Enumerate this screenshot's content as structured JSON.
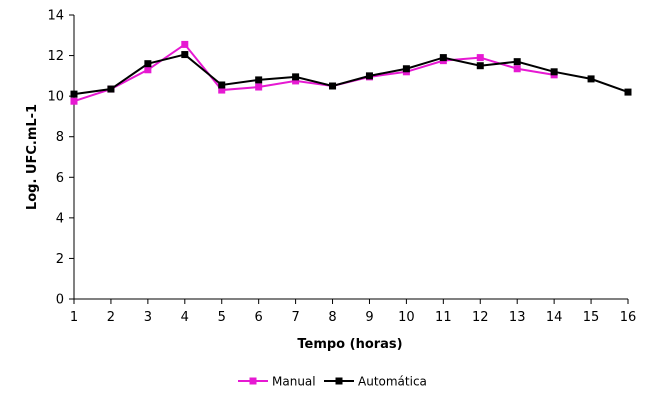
{
  "chart_data": {
    "type": "line",
    "xlabel": "Tempo (horas)",
    "ylabel": "Log. UFC.mL-1",
    "x": [
      1,
      2,
      3,
      4,
      5,
      6,
      7,
      8,
      9,
      10,
      11,
      12,
      13,
      14,
      15,
      16
    ],
    "xlim": [
      1,
      16
    ],
    "ylim": [
      0,
      14
    ],
    "yticks": [
      0,
      2,
      4,
      6,
      8,
      10,
      12,
      14
    ],
    "grid": false,
    "legend_position": "bottom",
    "series": [
      {
        "name": "Manual",
        "color": "#e619d2",
        "marker": "square",
        "values": [
          9.75,
          10.35,
          11.3,
          12.55,
          10.3,
          10.45,
          10.75,
          10.5,
          10.95,
          11.2,
          11.75,
          11.9,
          11.35,
          11.05,
          null,
          null
        ]
      },
      {
        "name": "Automática",
        "color": "#000000",
        "marker": "square",
        "values": [
          10.1,
          10.35,
          11.6,
          12.05,
          10.55,
          10.8,
          10.95,
          10.5,
          11.0,
          11.35,
          11.9,
          11.5,
          11.7,
          11.2,
          10.85,
          10.2
        ]
      }
    ]
  }
}
